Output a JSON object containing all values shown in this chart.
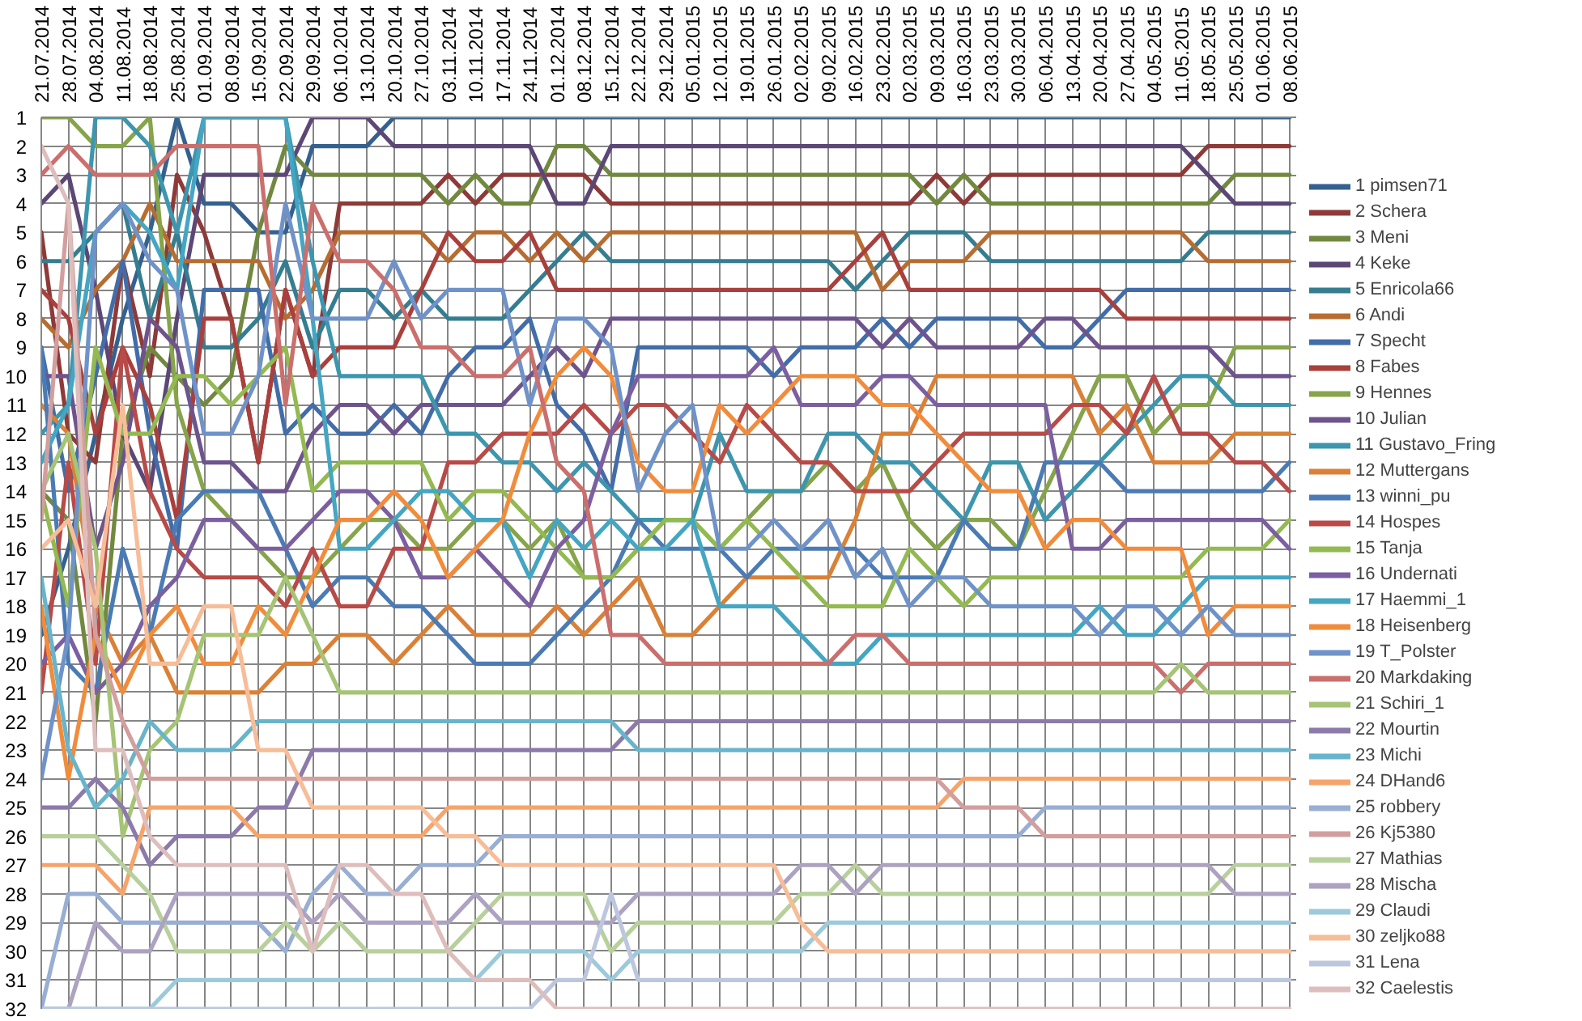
{
  "chart_data": {
    "type": "line",
    "categories": [
      "21.07.2014",
      "28.07.2014",
      "04.08.2014",
      "11.08.2014",
      "18.08.2014",
      "25.08.2014",
      "01.09.2014",
      "08.09.2014",
      "15.09.2014",
      "22.09.2014",
      "29.09.2014",
      "06.10.2014",
      "13.10.2014",
      "20.10.2014",
      "27.10.2014",
      "03.11.2014",
      "10.11.2014",
      "17.11.2014",
      "24.11.2014",
      "01.12.2014",
      "08.12.2014",
      "15.12.2014",
      "22.12.2014",
      "29.12.2014",
      "05.01.2015",
      "12.01.2015",
      "19.01.2015",
      "26.01.2015",
      "02.02.2015",
      "09.02.2015",
      "16.02.2015",
      "23.02.2015",
      "02.03.2015",
      "09.03.2015",
      "16.03.2015",
      "23.03.2015",
      "30.03.2015",
      "06.04.2015",
      "13.04.2015",
      "20.04.2015",
      "27.04.2015",
      "04.05.2015",
      "11.05.2015",
      "18.05.2015",
      "25.05.2015",
      "01.06.2015",
      "08.06.2015"
    ],
    "series": [
      {
        "name": "1 pimsen71",
        "color": "#35618f",
        "values": [
          19,
          16,
          12,
          8,
          5,
          1,
          4,
          4,
          5,
          5,
          2,
          2,
          2,
          1,
          1,
          1,
          1,
          1,
          1,
          1,
          1,
          1,
          1,
          1,
          1,
          1,
          1,
          1,
          1,
          1,
          1,
          1,
          1,
          1,
          1,
          1,
          1,
          1,
          1,
          1,
          1,
          1,
          1,
          1,
          1,
          1,
          1
        ]
      },
      {
        "name": "2 Schera",
        "color": "#8e3a38",
        "values": [
          5,
          12,
          13,
          6,
          10,
          3,
          5,
          8,
          13,
          7,
          10,
          4,
          4,
          4,
          4,
          3,
          4,
          3,
          3,
          3,
          3,
          4,
          4,
          4,
          4,
          4,
          4,
          4,
          4,
          4,
          4,
          4,
          4,
          3,
          4,
          3,
          3,
          3,
          3,
          3,
          3,
          3,
          3,
          2,
          2,
          2,
          2
        ]
      },
      {
        "name": "3 Meni",
        "color": "#71893f",
        "values": [
          14,
          15,
          22,
          12,
          9,
          10,
          11,
          10,
          5,
          2,
          3,
          3,
          3,
          3,
          3,
          4,
          3,
          4,
          4,
          2,
          2,
          3,
          3,
          3,
          3,
          3,
          3,
          3,
          3,
          3,
          3,
          3,
          3,
          4,
          3,
          4,
          4,
          4,
          4,
          4,
          4,
          4,
          4,
          4,
          3,
          3,
          3
        ]
      },
      {
        "name": "4 Keke",
        "color": "#5c4776",
        "values": [
          4,
          3,
          7,
          12,
          14,
          8,
          3,
          3,
          3,
          3,
          1,
          1,
          1,
          2,
          2,
          2,
          2,
          2,
          2,
          4,
          4,
          2,
          2,
          2,
          2,
          2,
          2,
          2,
          2,
          2,
          2,
          2,
          2,
          2,
          2,
          2,
          2,
          2,
          2,
          2,
          2,
          2,
          2,
          3,
          4,
          4,
          4
        ]
      },
      {
        "name": "5 Enricola66",
        "color": "#357d91",
        "values": [
          6,
          6,
          5,
          4,
          8,
          5,
          9,
          9,
          8,
          6,
          9,
          7,
          7,
          8,
          7,
          8,
          8,
          8,
          7,
          6,
          5,
          6,
          6,
          6,
          6,
          6,
          6,
          6,
          6,
          6,
          7,
          6,
          5,
          5,
          5,
          6,
          6,
          6,
          6,
          6,
          6,
          6,
          6,
          5,
          5,
          5,
          5
        ]
      },
      {
        "name": "6 Andi",
        "color": "#b66d31",
        "values": [
          8,
          9,
          7,
          6,
          4,
          6,
          6,
          6,
          6,
          8,
          7,
          5,
          5,
          5,
          5,
          6,
          5,
          5,
          6,
          5,
          6,
          5,
          5,
          5,
          5,
          5,
          5,
          5,
          5,
          5,
          5,
          7,
          6,
          6,
          6,
          5,
          5,
          5,
          5,
          5,
          5,
          5,
          5,
          6,
          6,
          6,
          6
        ]
      },
      {
        "name": "7 Specht",
        "color": "#426da9",
        "values": [
          9,
          14,
          10,
          6,
          12,
          16,
          7,
          7,
          7,
          12,
          11,
          12,
          12,
          11,
          12,
          10,
          9,
          9,
          8,
          11,
          12,
          14,
          9,
          9,
          9,
          9,
          9,
          10,
          9,
          9,
          9,
          8,
          9,
          8,
          8,
          8,
          8,
          9,
          9,
          8,
          7,
          7,
          7,
          7,
          7,
          7,
          7
        ]
      },
      {
        "name": "8 Fabes",
        "color": "#a9403d",
        "values": [
          7,
          8,
          12,
          9,
          11,
          15,
          8,
          8,
          13,
          7,
          10,
          9,
          9,
          9,
          7,
          5,
          6,
          6,
          5,
          7,
          7,
          7,
          7,
          7,
          7,
          7,
          7,
          7,
          7,
          7,
          6,
          5,
          7,
          7,
          7,
          7,
          7,
          7,
          7,
          7,
          8,
          8,
          8,
          8,
          8,
          8,
          8
        ]
      },
      {
        "name": "9 Hennes",
        "color": "#86a44a",
        "values": [
          1,
          1,
          2,
          2,
          1,
          11,
          14,
          15,
          16,
          17,
          17,
          16,
          15,
          15,
          16,
          16,
          15,
          15,
          16,
          15,
          17,
          17,
          16,
          15,
          15,
          16,
          15,
          14,
          14,
          13,
          14,
          13,
          15,
          16,
          15,
          15,
          16,
          14,
          12,
          10,
          10,
          12,
          11,
          11,
          9,
          9,
          9
        ]
      },
      {
        "name": "10 Julian",
        "color": "#6e548d",
        "values": [
          10,
          10,
          16,
          13,
          8,
          9,
          13,
          13,
          14,
          14,
          12,
          11,
          11,
          12,
          11,
          11,
          11,
          11,
          10,
          9,
          10,
          8,
          8,
          8,
          8,
          8,
          8,
          8,
          8,
          8,
          8,
          9,
          8,
          9,
          9,
          9,
          9,
          8,
          8,
          9,
          9,
          9,
          9,
          9,
          10,
          10,
          10
        ]
      },
      {
        "name": "11 Gustavo_Fring",
        "color": "#3d96ae",
        "values": [
          12,
          11,
          1,
          1,
          2,
          5,
          1,
          1,
          1,
          1,
          6,
          10,
          10,
          10,
          10,
          12,
          12,
          13,
          13,
          14,
          13,
          14,
          15,
          15,
          15,
          12,
          14,
          14,
          14,
          12,
          12,
          13,
          13,
          14,
          15,
          13,
          13,
          15,
          14,
          13,
          12,
          11,
          10,
          10,
          11,
          11,
          11
        ]
      },
      {
        "name": "12 Muttergans",
        "color": "#da8137",
        "values": [
          11,
          12,
          18,
          20,
          19,
          21,
          21,
          21,
          21,
          20,
          20,
          19,
          19,
          20,
          19,
          18,
          19,
          19,
          19,
          18,
          19,
          18,
          17,
          19,
          19,
          18,
          17,
          17,
          17,
          17,
          15,
          12,
          12,
          10,
          10,
          10,
          10,
          10,
          10,
          12,
          11,
          13,
          13,
          13,
          12,
          12,
          12
        ]
      },
      {
        "name": "13 winni_pu",
        "color": "#4b7bb4",
        "values": [
          9,
          20,
          21,
          16,
          19,
          15,
          14,
          14,
          14,
          16,
          18,
          17,
          17,
          18,
          18,
          19,
          20,
          20,
          20,
          19,
          18,
          17,
          15,
          16,
          16,
          16,
          17,
          16,
          16,
          16,
          16,
          17,
          17,
          17,
          15,
          16,
          16,
          13,
          13,
          13,
          14,
          14,
          14,
          14,
          14,
          14,
          13
        ]
      },
      {
        "name": "14 Hospes",
        "color": "#b84a47",
        "values": [
          21,
          13,
          20,
          9,
          14,
          16,
          17,
          17,
          17,
          18,
          16,
          18,
          18,
          16,
          16,
          13,
          13,
          12,
          12,
          12,
          11,
          12,
          11,
          11,
          12,
          13,
          11,
          12,
          13,
          13,
          14,
          14,
          14,
          13,
          12,
          12,
          12,
          12,
          11,
          11,
          12,
          10,
          12,
          12,
          13,
          13,
          14
        ]
      },
      {
        "name": "15 Tanja",
        "color": "#93b951",
        "values": [
          14,
          18,
          9,
          12,
          12,
          10,
          10,
          11,
          10,
          9,
          14,
          13,
          13,
          13,
          13,
          15,
          14,
          14,
          15,
          16,
          17,
          17,
          16,
          15,
          15,
          16,
          15,
          16,
          17,
          18,
          18,
          18,
          16,
          17,
          18,
          17,
          17,
          17,
          17,
          17,
          17,
          17,
          17,
          16,
          16,
          16,
          15
        ]
      },
      {
        "name": "16 Undernati",
        "color": "#7b5fa0",
        "values": [
          20,
          19,
          21,
          20,
          18,
          17,
          15,
          15,
          16,
          16,
          15,
          14,
          14,
          15,
          17,
          17,
          16,
          17,
          18,
          16,
          15,
          12,
          10,
          10,
          10,
          10,
          10,
          9,
          11,
          11,
          11,
          10,
          10,
          11,
          11,
          11,
          11,
          11,
          16,
          16,
          15,
          15,
          15,
          15,
          15,
          15,
          16
        ]
      },
      {
        "name": "17 Haemmi_1",
        "color": "#44a6c2",
        "values": [
          13,
          11,
          5,
          4,
          5,
          7,
          1,
          1,
          1,
          1,
          8,
          16,
          16,
          15,
          14,
          14,
          15,
          15,
          17,
          15,
          16,
          15,
          16,
          16,
          15,
          18,
          18,
          18,
          19,
          20,
          20,
          19,
          19,
          19,
          19,
          19,
          19,
          19,
          19,
          18,
          19,
          19,
          18,
          17,
          17,
          17,
          17
        ]
      },
      {
        "name": "18 Heisenberg",
        "color": "#f18c3c",
        "values": [
          18,
          24,
          19,
          21,
          19,
          18,
          20,
          20,
          18,
          19,
          17,
          15,
          15,
          14,
          15,
          17,
          16,
          15,
          12,
          10,
          9,
          10,
          13,
          14,
          14,
          11,
          12,
          11,
          10,
          10,
          10,
          11,
          11,
          12,
          13,
          14,
          14,
          16,
          15,
          15,
          16,
          16,
          16,
          19,
          18,
          18,
          18
        ]
      },
      {
        "name": "19 T_Polster",
        "color": "#6f93c9",
        "values": [
          24,
          19,
          5,
          4,
          6,
          7,
          12,
          12,
          10,
          4,
          8,
          8,
          8,
          6,
          8,
          7,
          7,
          7,
          11,
          8,
          8,
          9,
          14,
          12,
          11,
          16,
          16,
          15,
          16,
          15,
          17,
          16,
          18,
          17,
          17,
          18,
          18,
          18,
          18,
          19,
          18,
          18,
          19,
          18,
          19,
          19,
          19
        ]
      },
      {
        "name": "20 Markdaking",
        "color": "#cb6f6d",
        "values": [
          3,
          2,
          3,
          3,
          3,
          2,
          2,
          2,
          2,
          11,
          4,
          6,
          6,
          7,
          9,
          9,
          10,
          10,
          9,
          13,
          14,
          19,
          19,
          20,
          20,
          20,
          20,
          20,
          20,
          20,
          19,
          19,
          20,
          20,
          20,
          20,
          20,
          20,
          20,
          20,
          20,
          20,
          21,
          20,
          20,
          20,
          20
        ]
      },
      {
        "name": "21 Schiri_1",
        "color": "#a5c475",
        "values": [
          14,
          12,
          16,
          26,
          23,
          22,
          19,
          19,
          19,
          17,
          19,
          21,
          21,
          21,
          21,
          21,
          21,
          21,
          21,
          21,
          21,
          21,
          21,
          21,
          21,
          21,
          21,
          21,
          21,
          21,
          21,
          21,
          21,
          21,
          21,
          21,
          21,
          21,
          21,
          21,
          21,
          21,
          20,
          21,
          21,
          21,
          21
        ]
      },
      {
        "name": "22 Mourtin",
        "color": "#8c7aab",
        "values": [
          25,
          25,
          24,
          25,
          27,
          26,
          26,
          26,
          25,
          25,
          23,
          23,
          23,
          23,
          23,
          23,
          23,
          23,
          23,
          23,
          23,
          23,
          22,
          22,
          22,
          22,
          22,
          22,
          22,
          22,
          22,
          22,
          22,
          22,
          22,
          22,
          22,
          22,
          22,
          22,
          22,
          22,
          22,
          22,
          22,
          22,
          22
        ]
      },
      {
        "name": "23 Michi",
        "color": "#68b4cb",
        "values": [
          17,
          23,
          25,
          24,
          22,
          23,
          23,
          23,
          22,
          22,
          22,
          22,
          22,
          22,
          22,
          22,
          22,
          22,
          22,
          22,
          22,
          22,
          23,
          23,
          23,
          23,
          23,
          23,
          23,
          23,
          23,
          23,
          23,
          23,
          23,
          23,
          23,
          23,
          23,
          23,
          23,
          23,
          23,
          23,
          23,
          23,
          23
        ]
      },
      {
        "name": "24 DHand6",
        "color": "#f6a46b",
        "values": [
          27,
          27,
          27,
          28,
          25,
          25,
          25,
          25,
          26,
          26,
          26,
          26,
          26,
          26,
          26,
          25,
          25,
          25,
          25,
          25,
          25,
          25,
          25,
          25,
          25,
          25,
          25,
          25,
          25,
          25,
          25,
          25,
          25,
          25,
          24,
          24,
          24,
          24,
          24,
          24,
          24,
          24,
          24,
          24,
          24,
          24,
          24
        ]
      },
      {
        "name": "25 robbery",
        "color": "#98aed3",
        "values": [
          32,
          28,
          28,
          29,
          29,
          29,
          29,
          29,
          29,
          30,
          28,
          27,
          28,
          28,
          27,
          27,
          27,
          26,
          26,
          26,
          26,
          26,
          26,
          26,
          26,
          26,
          26,
          26,
          26,
          26,
          26,
          26,
          26,
          26,
          26,
          26,
          26,
          25,
          25,
          25,
          25,
          25,
          25,
          25,
          25,
          25,
          25
        ]
      },
      {
        "name": "26 Kj5380",
        "color": "#d29f9e",
        "values": [
          15,
          4,
          19,
          22,
          24,
          24,
          24,
          24,
          24,
          24,
          24,
          24,
          24,
          24,
          24,
          24,
          24,
          24,
          24,
          24,
          24,
          24,
          24,
          24,
          24,
          24,
          24,
          24,
          24,
          24,
          24,
          24,
          24,
          24,
          25,
          25,
          25,
          26,
          26,
          26,
          26,
          26,
          26,
          26,
          26,
          26,
          26
        ]
      },
      {
        "name": "27 Mathias",
        "color": "#b8d09c",
        "values": [
          26,
          26,
          26,
          27,
          28,
          30,
          30,
          30,
          30,
          29,
          30,
          29,
          30,
          30,
          30,
          30,
          29,
          28,
          28,
          28,
          28,
          30,
          29,
          29,
          29,
          29,
          29,
          29,
          28,
          28,
          27,
          28,
          28,
          28,
          28,
          28,
          28,
          28,
          28,
          28,
          28,
          28,
          28,
          28,
          27,
          27,
          27
        ]
      },
      {
        "name": "28 Mischa",
        "color": "#ada2c1",
        "values": [
          32,
          32,
          29,
          30,
          30,
          28,
          28,
          28,
          28,
          28,
          29,
          28,
          29,
          29,
          29,
          29,
          28,
          29,
          29,
          29,
          29,
          29,
          28,
          28,
          28,
          28,
          28,
          28,
          27,
          27,
          28,
          27,
          27,
          27,
          27,
          27,
          27,
          27,
          27,
          27,
          27,
          27,
          27,
          27,
          28,
          28,
          28
        ]
      },
      {
        "name": "29 Claudi",
        "color": "#9ccadb",
        "values": [
          32,
          32,
          32,
          32,
          32,
          31,
          31,
          31,
          31,
          31,
          31,
          31,
          31,
          31,
          31,
          31,
          31,
          30,
          30,
          30,
          30,
          31,
          30,
          30,
          30,
          30,
          30,
          30,
          30,
          29,
          29,
          29,
          29,
          29,
          29,
          29,
          29,
          29,
          29,
          29,
          29,
          29,
          29,
          29,
          29,
          29,
          29
        ]
      },
      {
        "name": "30 zeljko88",
        "color": "#f7bd98",
        "values": [
          16,
          15,
          18,
          11,
          20,
          20,
          18,
          18,
          23,
          23,
          25,
          25,
          25,
          25,
          25,
          26,
          26,
          27,
          27,
          27,
          27,
          27,
          27,
          27,
          27,
          27,
          27,
          27,
          29,
          30,
          30,
          30,
          30,
          30,
          30,
          30,
          30,
          30,
          30,
          30,
          30,
          30,
          30,
          30,
          30,
          30,
          30
        ]
      },
      {
        "name": "31 Lena",
        "color": "#bcc7df",
        "values": [
          32,
          32,
          32,
          32,
          32,
          32,
          32,
          32,
          32,
          32,
          32,
          32,
          32,
          32,
          32,
          32,
          32,
          32,
          32,
          31,
          31,
          28,
          31,
          31,
          31,
          31,
          31,
          31,
          31,
          31,
          31,
          31,
          31,
          31,
          31,
          31,
          31,
          31,
          31,
          31,
          31,
          31,
          31,
          31,
          31,
          31,
          31
        ]
      },
      {
        "name": "32 Caelestis",
        "color": "#ddbebd",
        "values": [
          2,
          4,
          23,
          23,
          26,
          27,
          27,
          27,
          27,
          27,
          30,
          27,
          27,
          28,
          28,
          30,
          31,
          31,
          31,
          32,
          32,
          32,
          32,
          32,
          32,
          32,
          32,
          32,
          32,
          32,
          32,
          32,
          32,
          32,
          32,
          32,
          32,
          32,
          32,
          32,
          32,
          32,
          32,
          32,
          32,
          32,
          32
        ]
      }
    ],
    "ylim": [
      32,
      1
    ],
    "yticks": [
      1,
      2,
      3,
      4,
      5,
      6,
      7,
      8,
      9,
      10,
      11,
      12,
      13,
      14,
      15,
      16,
      17,
      18,
      19,
      20,
      21,
      22,
      23,
      24,
      25,
      26,
      27,
      28,
      29,
      30,
      31,
      32
    ],
    "grid": true,
    "legend": "right"
  }
}
